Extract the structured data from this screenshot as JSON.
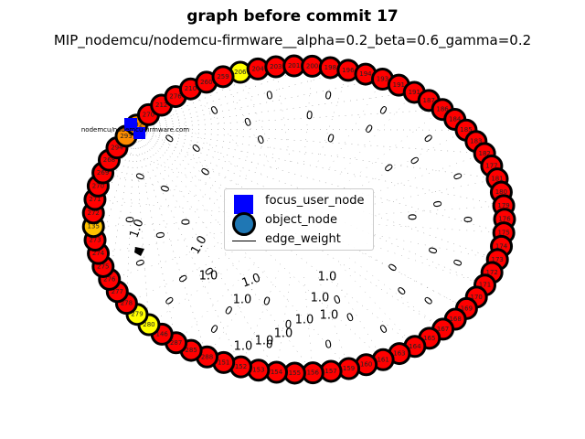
{
  "title": "graph before commit 17",
  "subtitle": "MIP_nodemcu/nodemcu-firmware__alpha=0.2_beta=0.6_gamma=0.2",
  "focus_node_label": "nodemcu/nodemcu-firmware.com",
  "legend": {
    "focus": "focus_user_node",
    "object": "object_node",
    "edge": "edge_weight"
  },
  "colors": {
    "focus": "#0000ff",
    "object_red": "#ff0000",
    "object_yellow": "#ffff00",
    "object_orange": "#ff8c00",
    "object_gold": "#ffc000",
    "legend_object": "#1f77b4",
    "border": "#000000"
  },
  "nodes": [
    {
      "label": "206",
      "color": "#ffff00"
    },
    {
      "label": "204",
      "color": "#ff0000"
    },
    {
      "label": "203",
      "color": "#ff0000"
    },
    {
      "label": "201",
      "color": "#ff0000"
    },
    {
      "label": "200",
      "color": "#ff0000"
    },
    {
      "label": "198",
      "color": "#ff0000"
    },
    {
      "label": "196",
      "color": "#ff0000"
    },
    {
      "label": "194",
      "color": "#ff0000"
    },
    {
      "label": "193",
      "color": "#ff0000"
    },
    {
      "label": "191",
      "color": "#ff0000"
    },
    {
      "label": "191",
      "color": "#ff0000"
    },
    {
      "label": "187",
      "color": "#ff0000"
    },
    {
      "label": "186",
      "color": "#ff0000"
    },
    {
      "label": "184",
      "color": "#ff0000"
    },
    {
      "label": "185",
      "color": "#ff0000"
    },
    {
      "label": "183",
      "color": "#ff0000"
    },
    {
      "label": "182",
      "color": "#ff0000"
    },
    {
      "label": "177",
      "color": "#ff0000"
    },
    {
      "label": "181",
      "color": "#ff0000"
    },
    {
      "label": "180",
      "color": "#ff0000"
    },
    {
      "label": "179",
      "color": "#ff0000"
    },
    {
      "label": "176",
      "color": "#ff0000"
    },
    {
      "label": "175",
      "color": "#ff0000"
    },
    {
      "label": "174",
      "color": "#ff0000"
    },
    {
      "label": "173",
      "color": "#ff0000"
    },
    {
      "label": "172",
      "color": "#ff0000"
    },
    {
      "label": "171",
      "color": "#ff0000"
    },
    {
      "label": "170",
      "color": "#ff0000"
    },
    {
      "label": "169",
      "color": "#ff0000"
    },
    {
      "label": "168",
      "color": "#ff0000"
    },
    {
      "label": "167",
      "color": "#ff0000"
    },
    {
      "label": "165",
      "color": "#ff0000"
    },
    {
      "label": "164",
      "color": "#ff0000"
    },
    {
      "label": "163",
      "color": "#ff0000"
    },
    {
      "label": "161",
      "color": "#ff0000"
    },
    {
      "label": "160",
      "color": "#ff0000"
    },
    {
      "label": "159",
      "color": "#ff0000"
    },
    {
      "label": "157",
      "color": "#ff0000"
    },
    {
      "label": "156",
      "color": "#ff0000"
    },
    {
      "label": "155",
      "color": "#ff0000"
    },
    {
      "label": "154",
      "color": "#ff0000"
    },
    {
      "label": "153",
      "color": "#ff0000"
    },
    {
      "label": "152",
      "color": "#ff0000"
    },
    {
      "label": "151",
      "color": "#ff0000"
    },
    {
      "label": "288",
      "color": "#ff0000"
    },
    {
      "label": "285",
      "color": "#ff0000"
    },
    {
      "label": "287",
      "color": "#ff0000"
    },
    {
      "label": "146",
      "color": "#ff0000"
    },
    {
      "label": "280",
      "color": "#ffff00"
    },
    {
      "label": "279",
      "color": "#ffff00"
    },
    {
      "label": "278",
      "color": "#ff0000"
    },
    {
      "label": "277",
      "color": "#ff0000"
    },
    {
      "label": "276",
      "color": "#ff0000"
    },
    {
      "label": "275",
      "color": "#ff0000"
    },
    {
      "label": "274",
      "color": "#ff0000"
    },
    {
      "label": "273",
      "color": "#ff0000"
    },
    {
      "label": "135",
      "color": "#ffc000"
    },
    {
      "label": "272",
      "color": "#ff0000"
    },
    {
      "label": "271",
      "color": "#ff0000"
    },
    {
      "label": "270",
      "color": "#ff0000"
    },
    {
      "label": "269",
      "color": "#ff0000"
    },
    {
      "label": "268",
      "color": "#ff0000"
    },
    {
      "label": "294",
      "color": "#ff0000"
    },
    {
      "label": "293",
      "color": "#ff8c00"
    },
    {
      "label": "292",
      "color": "#ff8c00"
    },
    {
      "label": "270",
      "color": "#ff0000"
    },
    {
      "label": "212",
      "color": "#ff0000"
    },
    {
      "label": "276",
      "color": "#ff0000"
    },
    {
      "label": "210",
      "color": "#ff0000"
    },
    {
      "label": "260",
      "color": "#ff0000"
    },
    {
      "label": "259",
      "color": "#ff0000"
    }
  ],
  "edge_labels": [
    "1.0",
    "1.0",
    "1.0",
    "1.0",
    "1.0",
    "1.0",
    "1.0",
    "1.0",
    "1.0",
    "1.0",
    "1.0",
    "1.0"
  ]
}
